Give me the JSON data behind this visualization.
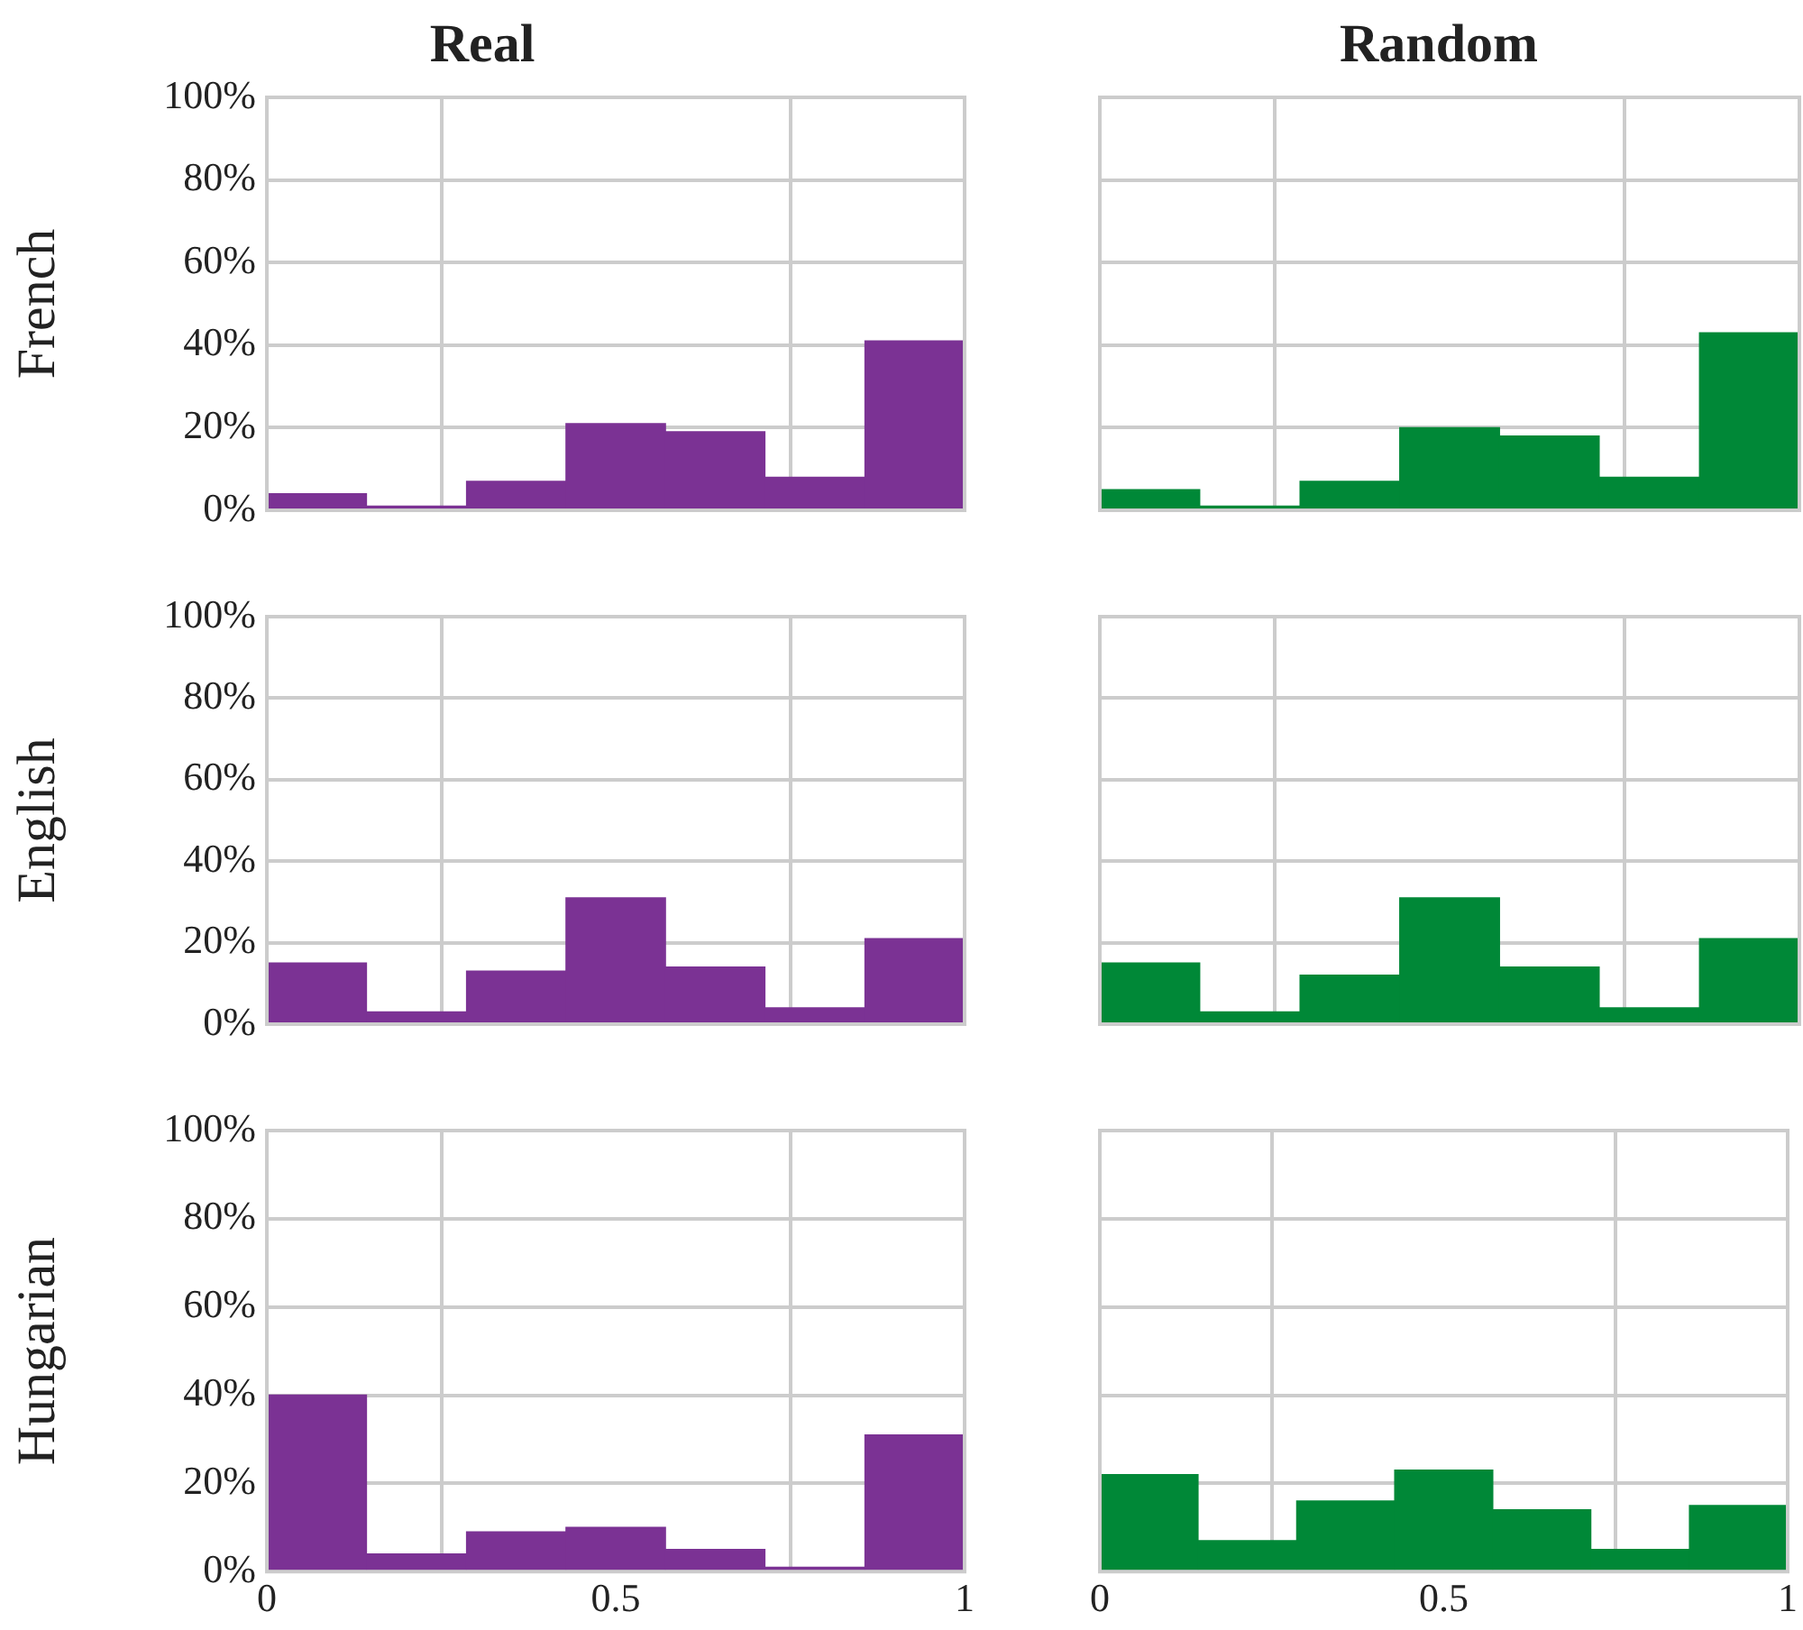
{
  "chart_data": [
    {
      "type": "histogram",
      "title": "Real",
      "ylabel": "French",
      "bins": [
        0,
        0.143,
        0.286,
        0.429,
        0.571,
        0.714,
        0.857,
        1
      ],
      "values": [
        4,
        1,
        7,
        21,
        19,
        8,
        41
      ],
      "color": "#7b3294",
      "xlim": [
        0,
        1
      ],
      "xticks": [
        {
          "value": 0,
          "label": null
        },
        {
          "value": 0.5,
          "label": null
        },
        {
          "value": 1,
          "label": null
        }
      ],
      "ylim": [
        0,
        100
      ],
      "yticks": [
        {
          "value": 0,
          "label": "0%"
        },
        {
          "value": 20,
          "label": "20%"
        },
        {
          "value": 40,
          "label": "40%"
        },
        {
          "value": 60,
          "label": "60%"
        },
        {
          "value": 80,
          "label": "80%"
        },
        {
          "value": 100,
          "label": "100%"
        }
      ],
      "grid": true,
      "tick_labels": "y"
    },
    {
      "type": "histogram",
      "title": "Random",
      "bins": [
        0,
        0.143,
        0.286,
        0.429,
        0.571,
        0.714,
        0.857,
        1
      ],
      "values": [
        5,
        1,
        7,
        20,
        18,
        8,
        43
      ],
      "color": "#008837",
      "xlim": [
        0,
        1
      ],
      "xticks": [
        {
          "value": 0,
          "label": null
        },
        {
          "value": 0.5,
          "label": null
        },
        {
          "value": 1,
          "label": null
        }
      ],
      "ylim": [
        0,
        100
      ],
      "yticks": [
        {
          "value": 0,
          "label": null
        },
        {
          "value": 20,
          "label": null
        },
        {
          "value": 40,
          "label": null
        },
        {
          "value": 60,
          "label": null
        },
        {
          "value": 80,
          "label": null
        },
        {
          "value": 100,
          "label": null
        }
      ],
      "grid": true,
      "tick_labels": false
    },
    {
      "type": "histogram",
      "ylabel": "English",
      "bins": [
        0,
        0.143,
        0.286,
        0.429,
        0.571,
        0.714,
        0.857,
        1
      ],
      "values": [
        15,
        3,
        13,
        31,
        14,
        4,
        21
      ],
      "color": "#7b3294",
      "xlim": [
        0,
        1
      ],
      "xticks": [
        {
          "value": 0,
          "label": null
        },
        {
          "value": 0.5,
          "label": null
        },
        {
          "value": 1,
          "label": null
        }
      ],
      "ylim": [
        0,
        100
      ],
      "yticks": [
        {
          "value": 0,
          "label": "0%"
        },
        {
          "value": 20,
          "label": "20%"
        },
        {
          "value": 40,
          "label": "40%"
        },
        {
          "value": 60,
          "label": "60%"
        },
        {
          "value": 80,
          "label": "80%"
        },
        {
          "value": 100,
          "label": "100%"
        }
      ],
      "grid": true,
      "tick_labels": "y"
    },
    {
      "type": "histogram",
      "bins": [
        0,
        0.143,
        0.286,
        0.429,
        0.571,
        0.714,
        0.857,
        1
      ],
      "values": [
        15,
        3,
        12,
        31,
        14,
        4,
        21
      ],
      "color": "#008837",
      "xlim": [
        0,
        1
      ],
      "xticks": [
        {
          "value": 0,
          "label": null
        },
        {
          "value": 0.5,
          "label": null
        },
        {
          "value": 1,
          "label": null
        }
      ],
      "ylim": [
        0,
        100
      ],
      "yticks": [
        {
          "value": 0,
          "label": null
        },
        {
          "value": 20,
          "label": null
        },
        {
          "value": 40,
          "label": null
        },
        {
          "value": 60,
          "label": null
        },
        {
          "value": 80,
          "label": null
        },
        {
          "value": 100,
          "label": null
        }
      ],
      "grid": true,
      "tick_labels": false
    },
    {
      "type": "histogram",
      "ylabel": "Hungarian",
      "bins": [
        0,
        0.143,
        0.286,
        0.429,
        0.571,
        0.714,
        0.857,
        1
      ],
      "values": [
        40,
        4,
        9,
        10,
        5,
        1,
        31
      ],
      "color": "#7b3294",
      "xlim": [
        0,
        1
      ],
      "xticks": [
        0,
        0.5,
        1
      ],
      "ylim": [
        0,
        100
      ],
      "yticks": [
        {
          "value": 0,
          "label": "0%"
        },
        {
          "value": 20,
          "label": "20%"
        },
        {
          "value": 40,
          "label": "40%"
        },
        {
          "value": 60,
          "label": "60%"
        },
        {
          "value": 80,
          "label": "80%"
        },
        {
          "value": 100,
          "label": "100%"
        }
      ],
      "grid": true
    },
    {
      "type": "histogram",
      "bins": [
        0,
        0.143,
        0.286,
        0.429,
        0.571,
        0.714,
        0.857,
        1
      ],
      "values": [
        22,
        7,
        16,
        23,
        14,
        5,
        15
      ],
      "color": "#008837",
      "xlim": [
        0,
        1
      ],
      "xticks": [
        0,
        0.5,
        1
      ],
      "ylim": [
        0,
        100
      ],
      "yticks": [
        {
          "value": 0,
          "label": null
        },
        {
          "value": 20,
          "label": null
        },
        {
          "value": 40,
          "label": null
        },
        {
          "value": 60,
          "label": null
        },
        {
          "value": 80,
          "label": null
        },
        {
          "value": 100,
          "label": null
        }
      ],
      "grid": true,
      "tick_labels": "x"
    }
  ]
}
